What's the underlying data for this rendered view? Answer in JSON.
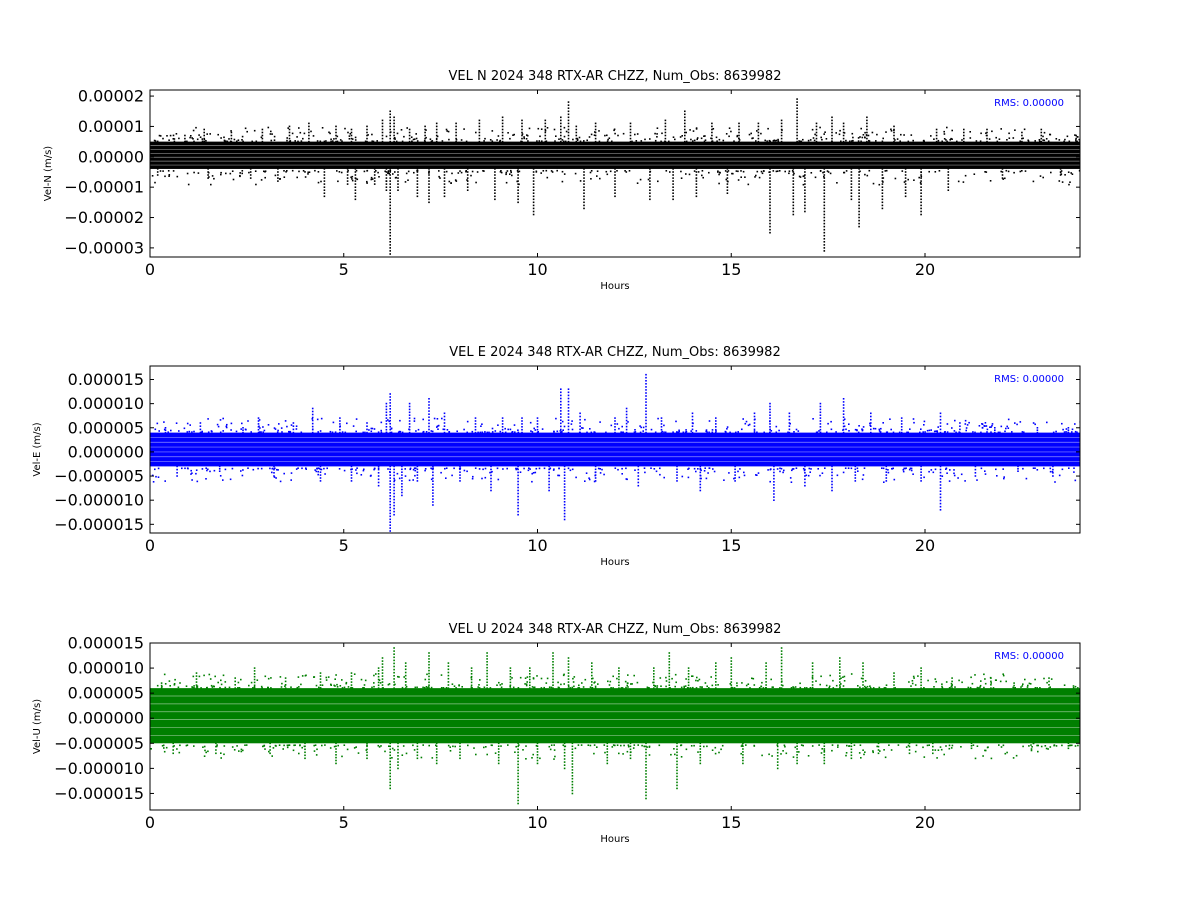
{
  "chart_data": [
    {
      "type": "scatter",
      "title": "VEL N 2024 348 RTX-AR  CHZZ, Num_Obs: 8639982",
      "xlabel": "Hours",
      "ylabel": "Vel-N (m/s)",
      "xlim": [
        0,
        24
      ],
      "ylim": [
        -3.3e-05,
        2.2e-05
      ],
      "xticks": [
        0,
        5,
        10,
        15,
        20
      ],
      "xtick_labels": [
        "0",
        "5",
        "10",
        "15",
        "20"
      ],
      "yticks": [
        2e-05,
        1e-05,
        0.0,
        -1e-05,
        -2e-05,
        -3e-05
      ],
      "ytick_labels": [
        "0.00002",
        "0.00001",
        "0.00000",
        "−0.00001",
        "−0.00002",
        "−0.00003"
      ],
      "color": "#000000",
      "annotation": "RMS:  0.00000",
      "annotation_color": "#0000ff",
      "grid": false,
      "series": [
        {
          "band": [
            -4e-06,
            5e-06
          ],
          "outliers": [
            [
              0.2,
              5e-06
            ],
            [
              0.2,
              -6e-06
            ],
            [
              0.9,
              7e-06
            ],
            [
              1.4,
              9e-06
            ],
            [
              1.5,
              -7e-06
            ],
            [
              2.1,
              8e-06
            ],
            [
              2.6,
              -7e-06
            ],
            [
              2.9,
              9e-06
            ],
            [
              3.3,
              -8e-06
            ],
            [
              3.6,
              1e-05
            ],
            [
              4.1,
              1.1e-05
            ],
            [
              4.5,
              -1.3e-05
            ],
            [
              4.8,
              1e-05
            ],
            [
              5.1,
              -9e-06
            ],
            [
              5.2,
              9e-06
            ],
            [
              5.3,
              -1.4e-05
            ],
            [
              5.6,
              1e-05
            ],
            [
              5.8,
              -9e-06
            ],
            [
              6.0,
              1.2e-05
            ],
            [
              6.1,
              -1.1e-05
            ],
            [
              6.2,
              1.5e-05
            ],
            [
              6.2,
              -3.2e-05
            ],
            [
              6.3,
              1.3e-05
            ],
            [
              6.4,
              -1.1e-05
            ],
            [
              6.7,
              9e-06
            ],
            [
              6.9,
              -1.3e-05
            ],
            [
              7.1,
              1e-05
            ],
            [
              7.2,
              -1.5e-05
            ],
            [
              7.4,
              1.1e-05
            ],
            [
              7.6,
              -1.3e-05
            ],
            [
              7.9,
              1.1e-05
            ],
            [
              8.2,
              -1.1e-05
            ],
            [
              8.5,
              1.2e-05
            ],
            [
              8.9,
              -1.4e-05
            ],
            [
              9.1,
              1.3e-05
            ],
            [
              9.5,
              -1.5e-05
            ],
            [
              9.6,
              1.2e-05
            ],
            [
              9.9,
              -1.9e-05
            ],
            [
              10.2,
              1.2e-05
            ],
            [
              10.6,
              1.3e-05
            ],
            [
              10.8,
              1.8e-05
            ],
            [
              11.0,
              1e-05
            ],
            [
              11.2,
              -1.7e-05
            ],
            [
              11.5,
              1.1e-05
            ],
            [
              12.0,
              -1.3e-05
            ],
            [
              12.4,
              1.1e-05
            ],
            [
              12.9,
              -1.4e-05
            ],
            [
              13.3,
              1.2e-05
            ],
            [
              13.5,
              -1.4e-05
            ],
            [
              13.8,
              1.5e-05
            ],
            [
              14.1,
              -1.3e-05
            ],
            [
              14.5,
              1.1e-05
            ],
            [
              14.9,
              -1.2e-05
            ],
            [
              15.2,
              1.1e-05
            ],
            [
              15.7,
              1.1e-05
            ],
            [
              16.0,
              -2.5e-05
            ],
            [
              16.3,
              1.2e-05
            ],
            [
              16.6,
              -1.9e-05
            ],
            [
              16.7,
              1.9e-05
            ],
            [
              16.9,
              -1.8e-05
            ],
            [
              17.2,
              1.1e-05
            ],
            [
              17.4,
              -3.1e-05
            ],
            [
              17.6,
              1.3e-05
            ],
            [
              17.9,
              1.1e-05
            ],
            [
              18.1,
              -1.4e-05
            ],
            [
              18.3,
              -2.3e-05
            ],
            [
              18.5,
              1.3e-05
            ],
            [
              18.9,
              -1.7e-05
            ],
            [
              19.2,
              1e-05
            ],
            [
              19.5,
              -1.3e-05
            ],
            [
              19.9,
              -1.9e-05
            ],
            [
              20.3,
              9e-06
            ],
            [
              20.6,
              -1.1e-05
            ],
            [
              21.0,
              9e-06
            ],
            [
              21.6,
              9e-06
            ],
            [
              22.0,
              -7e-06
            ],
            [
              22.5,
              8e-06
            ],
            [
              23.0,
              9e-06
            ],
            [
              23.5,
              -6e-06
            ],
            [
              23.9,
              7e-06
            ]
          ]
        }
      ]
    },
    {
      "type": "scatter",
      "title": "VEL E 2024 348 RTX-AR  CHZZ, Num_Obs: 8639982",
      "xlabel": "Hours",
      "ylabel": "Vel-E (m/s)",
      "xlim": [
        0,
        24
      ],
      "ylim": [
        -1.68e-05,
        1.78e-05
      ],
      "xticks": [
        0,
        5,
        10,
        15,
        20
      ],
      "xtick_labels": [
        "0",
        "5",
        "10",
        "15",
        "20"
      ],
      "yticks": [
        1.5e-05,
        1e-05,
        5e-06,
        0.0,
        -5e-06,
        -1e-05,
        -1.5e-05
      ],
      "ytick_labels": [
        "0.000015",
        "0.000010",
        "0.000005",
        "0.000000",
        "−0.000005",
        "−0.000010",
        "−0.000015"
      ],
      "color": "#0000ff",
      "annotation": "RMS:  0.00000",
      "annotation_color": "#0000ff",
      "grid": false,
      "series": [
        {
          "band": [
            -3e-06,
            4e-06
          ],
          "outliers": [
            [
              0.4,
              5e-06
            ],
            [
              0.7,
              -5e-06
            ],
            [
              1.3,
              6e-06
            ],
            [
              1.8,
              -4e-06
            ],
            [
              2.4,
              5e-06
            ],
            [
              2.8,
              7e-06
            ],
            [
              3.2,
              -5e-06
            ],
            [
              3.7,
              6e-06
            ],
            [
              4.2,
              9e-06
            ],
            [
              4.4,
              -6e-06
            ],
            [
              4.9,
              7e-06
            ],
            [
              5.2,
              -6e-06
            ],
            [
              5.6,
              6e-06
            ],
            [
              5.9,
              -7e-06
            ],
            [
              6.1,
              1e-05
            ],
            [
              6.2,
              1.2e-05
            ],
            [
              6.2,
              -1.7e-05
            ],
            [
              6.3,
              -1.3e-05
            ],
            [
              6.5,
              -9e-06
            ],
            [
              6.7,
              1e-05
            ],
            [
              6.9,
              -6e-06
            ],
            [
              7.2,
              1.1e-05
            ],
            [
              7.3,
              -1.1e-05
            ],
            [
              7.6,
              8e-06
            ],
            [
              8.0,
              -6e-06
            ],
            [
              8.4,
              7e-06
            ],
            [
              8.8,
              -8e-06
            ],
            [
              9.1,
              7e-06
            ],
            [
              9.5,
              -1.3e-05
            ],
            [
              9.6,
              7e-06
            ],
            [
              10.0,
              7e-06
            ],
            [
              10.3,
              -8e-06
            ],
            [
              10.6,
              1.3e-05
            ],
            [
              10.7,
              -1.4e-05
            ],
            [
              10.8,
              1.3e-05
            ],
            [
              11.1,
              8e-06
            ],
            [
              11.5,
              -6e-06
            ],
            [
              12.0,
              7e-06
            ],
            [
              12.3,
              9e-06
            ],
            [
              12.6,
              -7e-06
            ],
            [
              12.8,
              1.6e-05
            ],
            [
              13.2,
              7e-06
            ],
            [
              13.6,
              -6e-06
            ],
            [
              14.0,
              8e-06
            ],
            [
              14.2,
              -8e-06
            ],
            [
              14.6,
              7e-06
            ],
            [
              15.1,
              -6e-06
            ],
            [
              15.6,
              8e-06
            ],
            [
              16.0,
              1e-05
            ],
            [
              16.1,
              -1e-05
            ],
            [
              16.5,
              8e-06
            ],
            [
              16.9,
              -7e-06
            ],
            [
              17.3,
              1e-05
            ],
            [
              17.6,
              -8e-06
            ],
            [
              17.9,
              1.1e-05
            ],
            [
              18.2,
              -6e-06
            ],
            [
              18.6,
              8e-06
            ],
            [
              19.0,
              -6e-06
            ],
            [
              19.4,
              7e-06
            ],
            [
              19.9,
              -6e-06
            ],
            [
              20.4,
              8e-06
            ],
            [
              20.4,
              -1.2e-05
            ],
            [
              20.9,
              6e-06
            ],
            [
              21.3,
              -5e-06
            ],
            [
              21.8,
              5e-06
            ],
            [
              22.4,
              -4e-06
            ],
            [
              22.9,
              5e-06
            ],
            [
              23.3,
              -5e-06
            ],
            [
              23.7,
              5e-06
            ]
          ]
        }
      ]
    },
    {
      "type": "scatter",
      "title": "VEL U 2024 348 RTX-AR  CHZZ, Num_Obs: 8639982",
      "xlabel": "Hours",
      "ylabel": "Vel-U (m/s)",
      "xlim": [
        0,
        24
      ],
      "ylim": [
        -1.83e-05,
        1.5e-05
      ],
      "xticks": [
        0,
        5,
        10,
        15,
        20
      ],
      "xtick_labels": [
        "0",
        "5",
        "10",
        "15",
        "20"
      ],
      "yticks": [
        1.5e-05,
        1e-05,
        5e-06,
        0.0,
        -5e-06,
        -1e-05,
        -1.5e-05
      ],
      "ytick_labels": [
        "0.000015",
        "0.000010",
        "0.000005",
        "0.000000",
        "−0.000005",
        "−0.000010",
        "−0.000015"
      ],
      "color": "#007f00",
      "annotation": "RMS:  0.00000",
      "annotation_color": "#0000ff",
      "grid": false,
      "series": [
        {
          "band": [
            -5e-06,
            6e-06
          ],
          "outliers": [
            [
              0.3,
              7e-06
            ],
            [
              0.6,
              -7e-06
            ],
            [
              1.2,
              9e-06
            ],
            [
              1.7,
              -7e-06
            ],
            [
              2.2,
              8e-06
            ],
            [
              2.7,
              1e-05
            ],
            [
              3.1,
              -7e-06
            ],
            [
              3.5,
              8e-06
            ],
            [
              4.0,
              -8e-06
            ],
            [
              4.4,
              9e-06
            ],
            [
              4.8,
              -9e-06
            ],
            [
              5.2,
              9e-06
            ],
            [
              5.6,
              -8e-06
            ],
            [
              5.9,
              1e-05
            ],
            [
              6.0,
              1.2e-05
            ],
            [
              6.2,
              -1.4e-05
            ],
            [
              6.3,
              1.4e-05
            ],
            [
              6.4,
              -1e-05
            ],
            [
              6.6,
              1.1e-05
            ],
            [
              6.9,
              -8e-06
            ],
            [
              7.2,
              1.3e-05
            ],
            [
              7.4,
              -9e-06
            ],
            [
              7.7,
              1.1e-05
            ],
            [
              8.0,
              -8e-06
            ],
            [
              8.3,
              1e-05
            ],
            [
              8.7,
              1.3e-05
            ],
            [
              9.0,
              -9e-06
            ],
            [
              9.3,
              1e-05
            ],
            [
              9.5,
              -1.7e-05
            ],
            [
              9.8,
              1e-05
            ],
            [
              10.0,
              -9e-06
            ],
            [
              10.4,
              1.3e-05
            ],
            [
              10.7,
              -1e-05
            ],
            [
              10.8,
              1.2e-05
            ],
            [
              10.9,
              -1.5e-05
            ],
            [
              11.4,
              1.1e-05
            ],
            [
              11.8,
              -9e-06
            ],
            [
              12.1,
              1e-05
            ],
            [
              12.4,
              -8e-06
            ],
            [
              12.8,
              -1.6e-05
            ],
            [
              13.0,
              1e-05
            ],
            [
              13.4,
              1.3e-05
            ],
            [
              13.6,
              -1.4e-05
            ],
            [
              13.9,
              1e-05
            ],
            [
              14.2,
              -9e-06
            ],
            [
              14.6,
              1.1e-05
            ],
            [
              15.0,
              1.2e-05
            ],
            [
              15.3,
              -9e-06
            ],
            [
              15.9,
              1.1e-05
            ],
            [
              16.2,
              -1e-05
            ],
            [
              16.3,
              1.4e-05
            ],
            [
              16.7,
              -9e-06
            ],
            [
              17.1,
              1.1e-05
            ],
            [
              17.4,
              -9e-06
            ],
            [
              17.8,
              1.2e-05
            ],
            [
              18.1,
              -8e-06
            ],
            [
              18.4,
              1.1e-05
            ],
            [
              18.8,
              -7e-06
            ],
            [
              19.2,
              9e-06
            ],
            [
              19.6,
              -7e-06
            ],
            [
              19.9,
              1e-05
            ],
            [
              20.2,
              -7e-06
            ],
            [
              20.7,
              8e-06
            ],
            [
              21.2,
              -6e-06
            ],
            [
              21.7,
              8e-06
            ],
            [
              22.3,
              7e-06
            ],
            [
              22.8,
              -5e-06
            ],
            [
              23.2,
              8e-06
            ],
            [
              23.7,
              -6e-06
            ]
          ]
        }
      ]
    }
  ]
}
